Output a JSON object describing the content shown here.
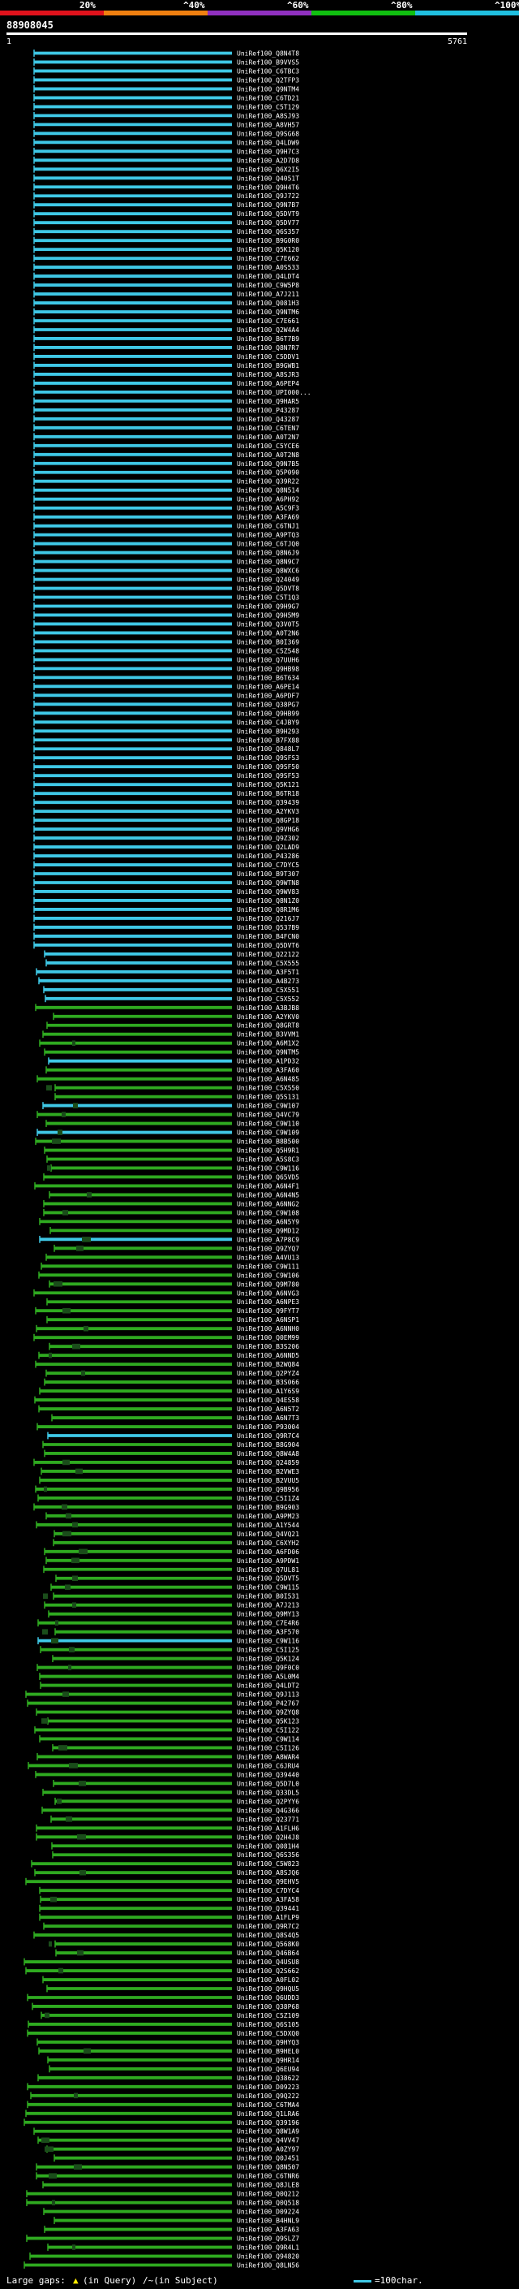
{
  "legend": {
    "labels": [
      "20%",
      "^40%",
      "^60%",
      "^80%",
      "^100%"
    ],
    "colors": [
      "#e0121c",
      "#f08010",
      "#9030c0",
      "#10c010",
      "#20c0e0"
    ]
  },
  "query": {
    "label": "88908045",
    "start": "1",
    "end": "5761"
  },
  "footer": {
    "large_gaps_text": "Large gaps: ",
    "gap_in_query": "(in Query)",
    "gap_in_subject": "/~(in Subject)",
    "scale_text": "=100char."
  },
  "chart_data": {
    "type": "alignment-map",
    "query_length": 5761,
    "labels": [
      "UniRef100_Q8N4T8",
      "UniRef100_B9VVS5",
      "UniRef100_C6TBC3",
      "UniRef100_Q2TFP3",
      "UniRef100_Q9NTM4",
      "UniRef100_C6TD21",
      "UniRef100_C5T129",
      "UniRef100_A8SJ93",
      "UniRef100_A8VH57",
      "UniRef100_Q9SG68",
      "UniRef100_Q4LDW9",
      "UniRef100_Q9H7C3",
      "UniRef100_A2D7D8",
      "UniRef100_Q6X2I5",
      "UniRef100_Q4051T",
      "UniRef100_Q9H4T6",
      "UniRef100_Q9J722",
      "UniRef100_Q9N7B7",
      "UniRef100_Q5DVT9",
      "UniRef100_Q5DV77",
      "UniRef100_Q6S357",
      "UniRef100_B9G0R0",
      "UniRef100_Q5K120",
      "UniRef100_C7E662",
      "UniRef100_A0S533",
      "UniRef100_Q4LDT4",
      "UniRef100_C9W5P8",
      "UniRef100_A7J211",
      "UniRef100_Q081H3",
      "UniRef100_Q9NTM6",
      "UniRef100_C7E661",
      "UniRef100_Q2W4A4",
      "UniRef100_B6T7B9",
      "UniRef100_Q8N7R7",
      "UniRef100_C5DDV1",
      "UniRef100_B9GWB1",
      "UniRef100_A8SJR3",
      "UniRef100_A6PEP4",
      "UniRef100_UPI000...",
      "UniRef100_Q9HAR5",
      "UniRef100_P43287",
      "UniRef100_Q43287",
      "UniRef100_C6TEN7",
      "UniRef100_A0T2N7",
      "UniRef100_C5YCE6",
      "UniRef100_A0T2N8",
      "UniRef100_Q9N7B5",
      "UniRef100_Q5P090",
      "UniRef100_Q39R22",
      "UniRef100_Q8N514",
      "UniRef100_A6PH92",
      "UniRef100_A5C9F3",
      "UniRef100_A3FA69",
      "UniRef100_C6TNJ1",
      "UniRef100_A9PTQ3",
      "UniRef100_C6TJQ0",
      "UniRef100_Q8N6J9",
      "UniRef100_Q8N9C7",
      "UniRef100_Q8WXC6",
      "UniRef100_Q24049",
      "UniRef100_Q5DVT8",
      "UniRef100_C5T1Q3",
      "UniRef100_Q9H9G7",
      "UniRef100_Q9H5M9",
      "UniRef100_Q3V0T5",
      "UniRef100_A0T2N6",
      "UniRef100_B0I369",
      "UniRef100_C5Z548",
      "UniRef100_Q7UUH6",
      "UniRef100_Q9HB98",
      "UniRef100_B6T634",
      "UniRef100_A6PE14",
      "UniRef100_A6PDF7",
      "UniRef100_Q38PG7",
      "UniRef100_Q9HB99",
      "UniRef100_C4JBY9",
      "UniRef100_B9H293",
      "UniRef100_B7FX88",
      "UniRef100_Q848L7",
      "UniRef100_Q9SFS3",
      "UniRef100_Q9SF50",
      "UniRef100_Q9SF53",
      "UniRef100_Q5K121",
      "UniRef100_B6TR18",
      "UniRef100_Q39439",
      "UniRef100_A2YKV3",
      "UniRef100_Q8GP18",
      "UniRef100_Q9VHG6",
      "UniRef100_Q9Z302",
      "UniRef100_Q2LAD9",
      "UniRef100_P43286",
      "UniRef100_C7DYC5",
      "UniRef100_B9T307",
      "UniRef100_Q9WTN8",
      "UniRef100_Q9WV83",
      "UniRef100_Q8N1Z0",
      "UniRef100_Q8R1M6",
      "UniRef100_Q216J7",
      "UniRef100_Q537B9",
      "UniRef100_B4FCN0",
      "UniRef100_Q5DVT6",
      "UniRef100_Q22122",
      "UniRef100_C5X555",
      "UniRef100_A3F5T1",
      "UniRef100_A4B273",
      "UniRef100_C5X551",
      "UniRef100_C5X552",
      "UniRef100_A3BJB8",
      "UniRef100_A2YKV0",
      "UniRef100_Q8GRT8",
      "UniRef100_B3VVM1",
      "UniRef100_A6M1X2",
      "UniRef100_Q9NTM5",
      "UniRef100_A1PD32",
      "UniRef100_A3FA60",
      "UniRef100_A6N485",
      "UniRef100_C5X550",
      "UniRef100_Q5S131",
      "UniRef100_C9W107",
      "UniRef100_Q4VC79",
      "UniRef100_C9W110",
      "UniRef100_C9W109",
      "UniRef100_B8B500",
      "UniRef100_Q5H9R1",
      "UniRef100_A5S8C3",
      "UniRef100_C9W116",
      "UniRef100_Q65VD5",
      "UniRef100_A6N4F1",
      "UniRef100_A6N4N5",
      "UniRef100_A6NNG2",
      "UniRef100_C9W108",
      "UniRef100_A6N5Y9",
      "UniRef100_Q9MD12",
      "UniRef100_A7P8C9",
      "UniRef100_Q9ZYQ7",
      "UniRef100_A4VU13",
      "UniRef100_C9W111",
      "UniRef100_C9W106",
      "UniRef100_Q9M780",
      "UniRef100_A6NVG3",
      "UniRef100_A6NPE3",
      "UniRef100_Q9FYT7",
      "UniRef100_A6NSP1",
      "UniRef100_A6NNH0",
      "UniRef100_Q0EM99",
      "UniRef100_B3S206",
      "UniRef100_A6NND5",
      "UniRef100_B2WQ84",
      "UniRef100_Q2PYZ4",
      "UniRef100_B3S066",
      "UniRef100_A1Y6S9",
      "UniRef100_Q4ES58",
      "UniRef100_A6N5T2",
      "UniRef100_A6N7T3",
      "UniRef100_P93004",
      "UniRef100_Q9R7C4",
      "UniRef100_B8G904",
      "UniRef100_Q8W4A8",
      "UniRef100_Q24859",
      "UniRef100_B2VWE3",
      "UniRef100_B2VUU5",
      "UniRef100_Q9B956",
      "UniRef100_C5I1Z4",
      "UniRef100_B9G903",
      "UniRef100_A9PM23",
      "UniRef100_A1Y544",
      "UniRef100_Q4VQ21",
      "UniRef100_C6XYH2",
      "UniRef100_A6FD06",
      "UniRef100_A9PDW1",
      "UniRef100_Q7UL81",
      "UniRef100_Q5DVT5",
      "UniRef100_C9W115",
      "UniRef100_B0I531",
      "UniRef100_A7J213",
      "UniRef100_Q9MY13",
      "UniRef100_C7E4R6",
      "UniRef100_A3F570",
      "UniRef100_C9W116",
      "UniRef100_C5I125",
      "UniRef100_Q5K124",
      "UniRef100_Q9F0C0",
      "UniRef100_A5L0M4",
      "UniRef100_Q4LDT2",
      "UniRef100_Q9J113",
      "UniRef100_P42767",
      "UniRef100_Q9ZYQ8",
      "UniRef100_Q5K123",
      "UniRef100_C5I122",
      "UniRef100_C9W114",
      "UniRef100_C5I126",
      "UniRef100_A8WAR4",
      "UniRef100_C6JRU4",
      "UniRef100_Q39440",
      "UniRef100_Q5D7L0",
      "UniRef100_Q33DL5",
      "UniRef100_Q2PYY6",
      "UniRef100_Q4G366",
      "UniRef100_Q23771",
      "UniRef100_A1FLH6",
      "UniRef100_Q2H4J8",
      "UniRef100_Q081H4",
      "UniRef100_Q6S356",
      "UniRef100_C5W823",
      "UniRef100_A8SJQ6",
      "UniRef100_Q9EHV5",
      "UniRef100_C7DYC4",
      "UniRef100_A3FA58",
      "UniRef100_Q39441",
      "UniRef100_A1FLP9",
      "UniRef100_Q9R7C2",
      "UniRef100_Q8S4Q5",
      "UniRef100_Q568K0",
      "UniRef100_Q46B64",
      "UniRef100_Q4USU8",
      "UniRef100_Q2S662",
      "UniRef100_A0FL02",
      "UniRef100_Q9HQU5",
      "UniRef100_Q6UDD3",
      "UniRef100_Q38P68",
      "UniRef100_C5Z109",
      "UniRef100_Q6S105",
      "UniRef100_C5DXQ0",
      "UniRef100_Q9HYQ3",
      "UniRef100_B9HEL0",
      "UniRef100_Q9HR14",
      "UniRef100_Q6EU94",
      "UniRef100_Q38622",
      "UniRef100_D09223",
      "UniRef100_Q9Q222",
      "UniRef100_C6TMA4",
      "UniRef100_Q1LRA6",
      "UniRef100_Q39196",
      "UniRef100_Q8W1A9",
      "UniRef100_Q4VV47",
      "UniRef100_A0ZY97",
      "UniRef100_Q0J451",
      "UniRef100_Q8N507",
      "UniRef100_C6TNR6",
      "UniRef100_Q8JLE8",
      "UniRef100_Q0Q212",
      "UniRef100_Q0Q518",
      "UniRef100_D09224",
      "UniRef100_B4HNL9",
      "UniRef100_A3FA63",
      "UniRef100_Q9SLZ7",
      "UniRef100_Q9R4L1",
      "UniRef100_Q94820",
      "UniRef100_Q8LN56"
    ],
    "colors": {
      "high": "#3fc8e6",
      "mid": "#2faa20",
      "dark_blocks": "#1a4d1a"
    }
  }
}
